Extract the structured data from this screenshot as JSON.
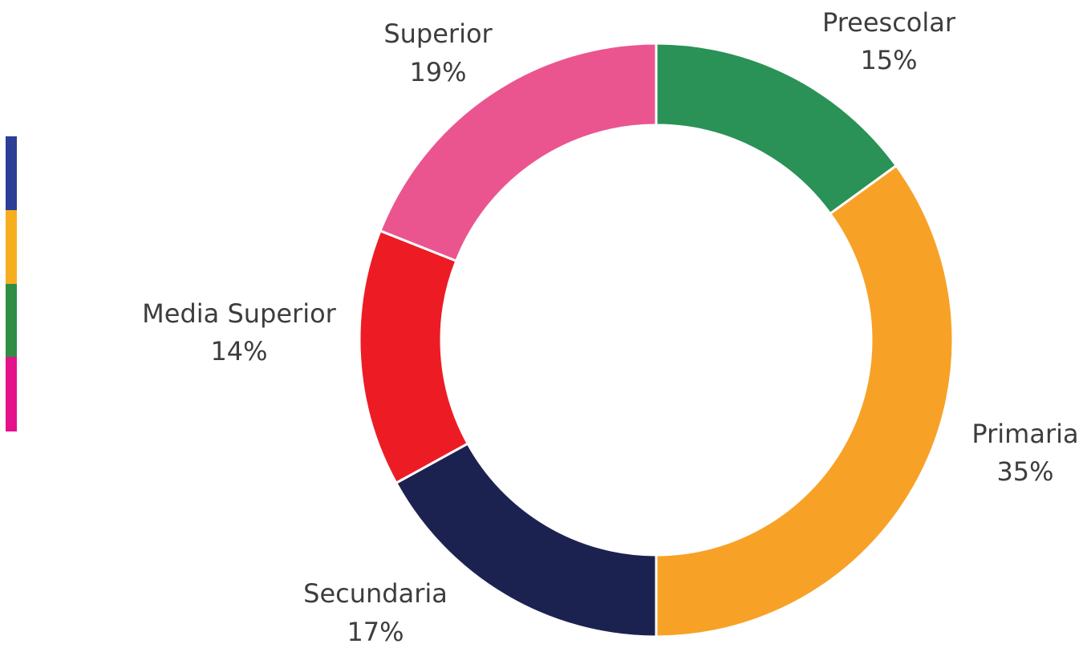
{
  "chart_data": {
    "type": "donut",
    "categories": [
      "Preescolar",
      "Primaria",
      "Secundaria",
      "Media Superior",
      "Superior"
    ],
    "values": [
      15,
      35,
      17,
      14,
      19
    ],
    "value_labels": [
      "15%",
      "35%",
      "17%",
      "14%",
      "19%"
    ],
    "colors": [
      "#2a9257",
      "#f7a227",
      "#1c2250",
      "#ed1c24",
      "#ea5590"
    ]
  }
}
